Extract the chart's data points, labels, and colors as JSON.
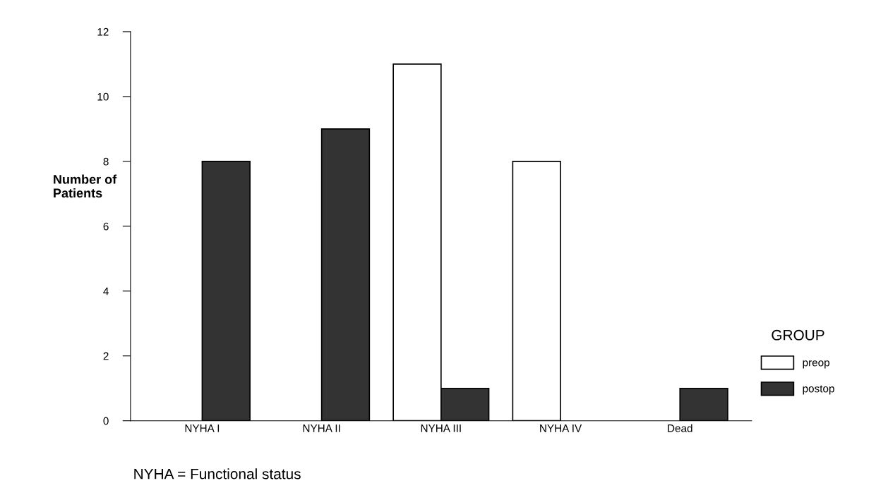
{
  "chart_data": {
    "type": "bar",
    "ylabel": "Number of\nPatients",
    "categories": [
      "NYHA I",
      "NYHA II",
      "NYHA III",
      "NYHA IV",
      "Dead"
    ],
    "series": [
      {
        "name": "preop",
        "color": "#ffffff",
        "values": [
          0,
          0,
          11,
          8,
          0
        ]
      },
      {
        "name": "postop",
        "color": "#333333",
        "values": [
          8,
          9,
          1,
          0,
          1
        ]
      }
    ],
    "ylim": [
      0,
      12
    ],
    "yticks": [
      0,
      2,
      4,
      6,
      8,
      10,
      12
    ],
    "legend": "right",
    "legend_title": "GROUP",
    "grid": false,
    "annotations": [
      "NYHA = Functional status"
    ]
  }
}
